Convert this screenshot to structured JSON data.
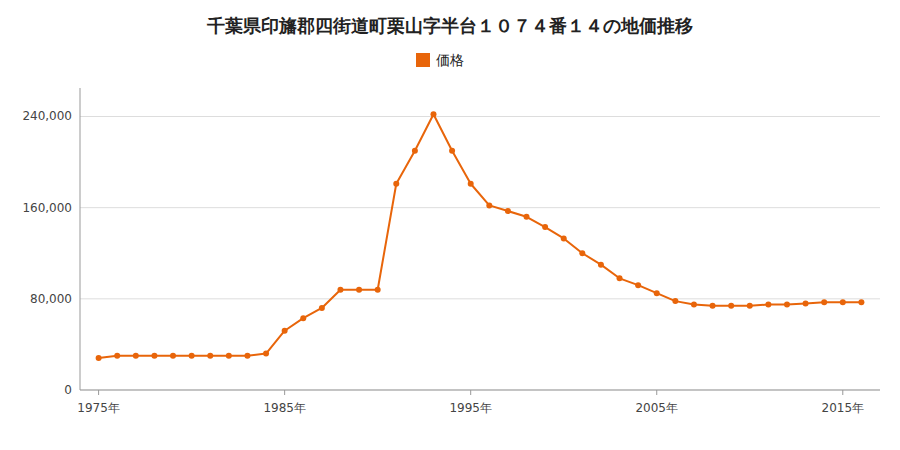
{
  "chart_data": {
    "type": "line",
    "title": "千葉県印旛郡四街道町栗山字半台１０７４番１４の地価推移",
    "x": [
      1975,
      1976,
      1977,
      1978,
      1979,
      1980,
      1981,
      1982,
      1983,
      1984,
      1985,
      1986,
      1987,
      1988,
      1989,
      1990,
      1991,
      1992,
      1993,
      1994,
      1995,
      1996,
      1997,
      1998,
      1999,
      2000,
      2001,
      2002,
      2003,
      2004,
      2005,
      2006,
      2007,
      2008,
      2009,
      2010,
      2011,
      2012,
      2013,
      2014,
      2015,
      2016
    ],
    "series": [
      {
        "name": "価格",
        "color": "#e8650a",
        "marker": "circle",
        "values": [
          28000,
          30000,
          30000,
          30000,
          30000,
          30000,
          30000,
          30000,
          30000,
          32000,
          52000,
          63000,
          72000,
          88000,
          88000,
          88000,
          181000,
          210000,
          242000,
          210000,
          181000,
          162000,
          157000,
          152000,
          143000,
          133000,
          120000,
          110000,
          98000,
          92000,
          85000,
          78000,
          75000,
          74000,
          74000,
          74000,
          75000,
          75000,
          76000,
          77000,
          77000,
          77000
        ]
      }
    ],
    "xlim": [
      1974,
      2017
    ],
    "xticks": [
      {
        "value": 1975,
        "label": "1975年"
      },
      {
        "value": 1985,
        "label": "1985年"
      },
      {
        "value": 1995,
        "label": "1995年"
      },
      {
        "value": 2005,
        "label": "2005年"
      },
      {
        "value": 2015,
        "label": "2015年"
      }
    ],
    "ylim": [
      0,
      265000
    ],
    "yticks": [
      0,
      {
        "value": 80000,
        "label": "80,000"
      },
      {
        "value": 160000,
        "label": "160,000"
      },
      {
        "value": 240000,
        "label": "240,000"
      }
    ],
    "grid": true,
    "legend": "top"
  }
}
